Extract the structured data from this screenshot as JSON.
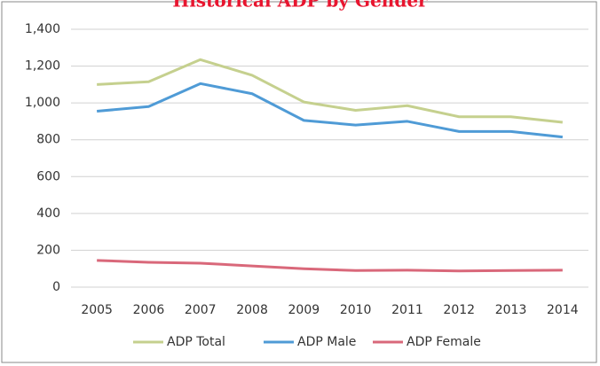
{
  "chart_data": {
    "type": "line",
    "title": "Historical ADP by Gender",
    "categories": [
      "2005",
      "2006",
      "2007",
      "2008",
      "2009",
      "2010",
      "2011",
      "2012",
      "2013",
      "2014"
    ],
    "series": [
      {
        "name": "ADP Total",
        "color": "#c5d08e",
        "values": [
          1100,
          1115,
          1235,
          1150,
          1005,
          960,
          985,
          925,
          925,
          895
        ]
      },
      {
        "name": "ADP Male",
        "color": "#4f9bd6",
        "values": [
          955,
          980,
          1105,
          1050,
          905,
          880,
          900,
          845,
          845,
          815
        ]
      },
      {
        "name": "ADP Female",
        "color": "#d9687a",
        "values": [
          145,
          135,
          130,
          115,
          100,
          90,
          92,
          88,
          90,
          92
        ]
      }
    ],
    "ylim": [
      0,
      1400
    ],
    "yticks": [
      0,
      200,
      400,
      600,
      800,
      {
        "value": 1000,
        "label": "1,000"
      },
      {
        "value": 1200,
        "label": "1,200"
      },
      {
        "value": 1400,
        "label": "1,400"
      }
    ],
    "grid": true,
    "legend": "bottom"
  }
}
